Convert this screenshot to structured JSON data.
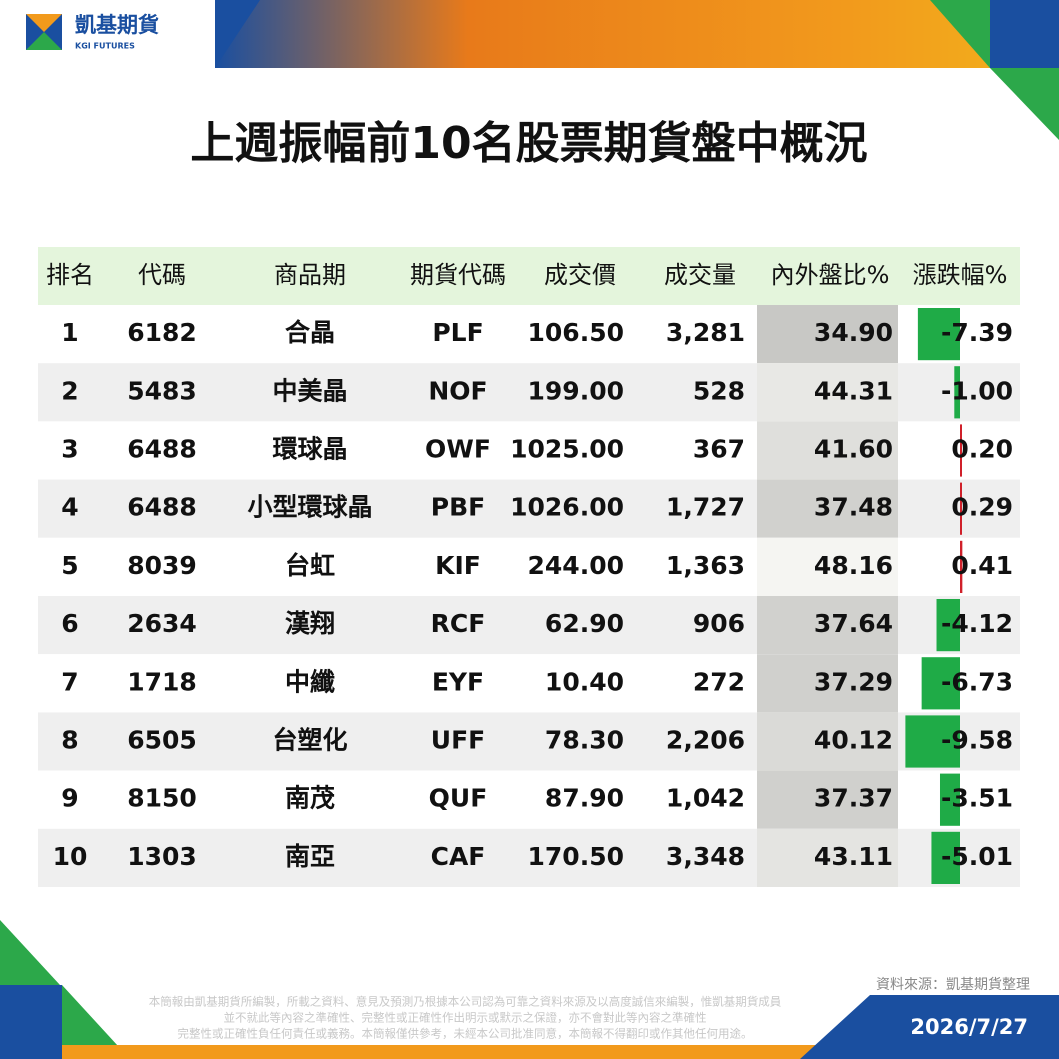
{
  "header": {
    "logo_name": "凱基期貨",
    "logo_sub": "KGI FUTURES"
  },
  "title": "上週振幅前10名股票期貨盤中概況",
  "table": {
    "columns": [
      "排名",
      "代碼",
      "商品期",
      "期貨代碼",
      "成交價",
      "成交量",
      "內外盤比%",
      "漲跌幅%"
    ],
    "rows": [
      [
        "1",
        "6182",
        "合晶",
        "PLF",
        "106.50",
        "3,281",
        "34.90",
        "-7.39"
      ],
      [
        "2",
        "5483",
        "中美晶",
        "NOF",
        "199.00",
        "528",
        "44.31",
        "-1.00"
      ],
      [
        "3",
        "6488",
        "環球晶",
        "OWF",
        "1025.00",
        "367",
        "41.60",
        "0.20"
      ],
      [
        "4",
        "6488",
        "小型環球晶",
        "PBF",
        "1026.00",
        "1,727",
        "37.48",
        "0.29"
      ],
      [
        "5",
        "8039",
        "台虹",
        "KIF",
        "244.00",
        "1,363",
        "48.16",
        "0.41"
      ],
      [
        "6",
        "2634",
        "漢翔",
        "RCF",
        "62.90",
        "906",
        "37.64",
        "-4.12"
      ],
      [
        "7",
        "1718",
        "中纖",
        "EYF",
        "10.40",
        "272",
        "37.29",
        "-6.73"
      ],
      [
        "8",
        "6505",
        "台塑化",
        "UFF",
        "78.30",
        "2,206",
        "40.12",
        "-9.58"
      ],
      [
        "9",
        "8150",
        "南茂",
        "QUF",
        "87.90",
        "1,042",
        "37.37",
        "-3.51"
      ],
      [
        "10",
        "1303",
        "南亞",
        "CAF",
        "170.50",
        "3,348",
        "43.11",
        "-5.01"
      ]
    ]
  },
  "footer": {
    "source": "資料來源：凱基期貨整理",
    "disclaimer": [
      "本簡報由凱基期貨所編製，所載之資料、意見及預測乃根據本公司認為可靠之資料來源及以高度誠信來編製，惟凱基期貨成員",
      "並不就此等內容之準確性、完整性或正確性作出明示或默示之保證，亦不會對此等內容之準確性",
      "完整性或正確性負任何責任或義務。本簡報僅供參考，未經本公司批准同意，本簡報不得翻印或作其他任何用途。"
    ],
    "date": "2026/7/27"
  }
}
